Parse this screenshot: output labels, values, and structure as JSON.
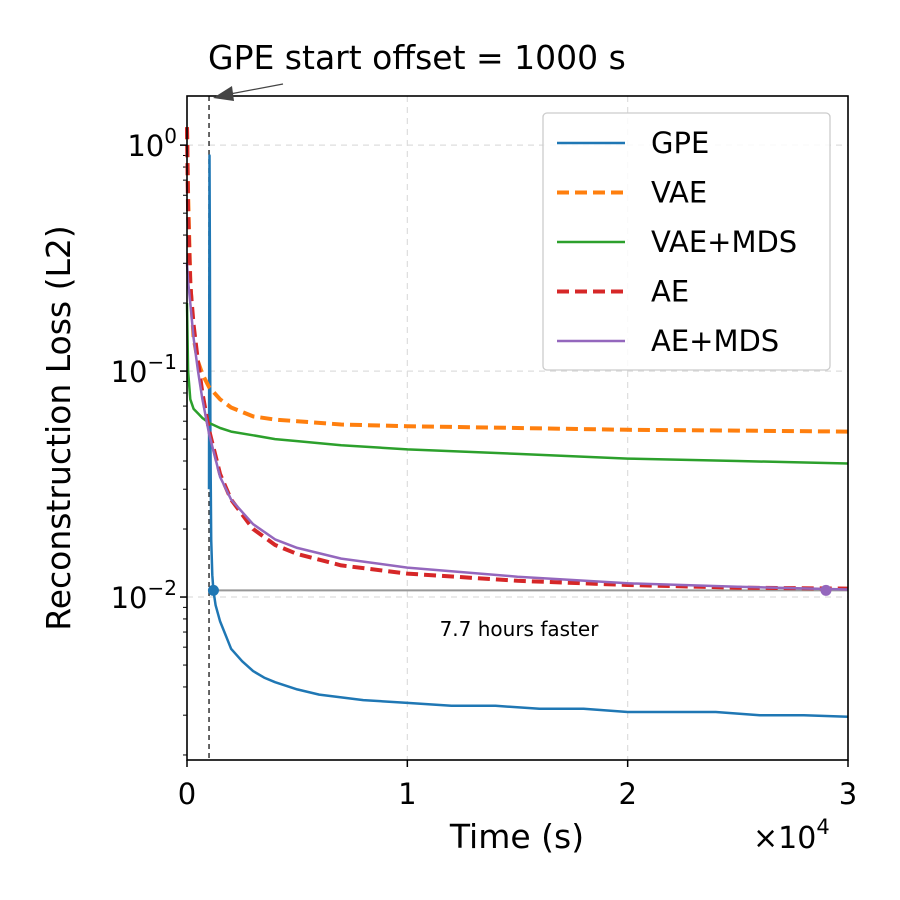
{
  "chart_data": {
    "type": "line",
    "title": "GPE start offset = 1000 s",
    "xlabel": "Time (s)",
    "ylabel": "Reconstruction Loss (L2)",
    "x_scale_label": "×10",
    "x_scale_exp": "4",
    "xlim": [
      0,
      30000
    ],
    "ylim": [
      0.0019,
      1.65
    ],
    "yscale": "log",
    "x_ticks": [
      0,
      10000,
      20000,
      30000
    ],
    "x_tick_labels": [
      "0",
      "1",
      "2",
      "3"
    ],
    "y_ticks": [
      {
        "value": 1,
        "base": "10",
        "exp": "0"
      },
      {
        "value": 0.1,
        "base": "10",
        "exp": "−1"
      },
      {
        "value": 0.01,
        "base": "10",
        "exp": "−2"
      }
    ],
    "grid": true,
    "legend_position": "top-right",
    "gpe_offset_s": 1000,
    "speedup_annotation": "7.7 hours faster",
    "speedup_marker_loss": 0.0107,
    "speedup_marker_times": [
      1200,
      29000
    ],
    "series": [
      {
        "name": "GPE",
        "color": "#1f77b4",
        "dash": "solid",
        "width": 2.5,
        "x": [
          1000,
          1020,
          1040,
          1060,
          1080,
          1100,
          1150,
          1200,
          1300,
          1500,
          1800,
          2000,
          2500,
          3000,
          3500,
          4000,
          5000,
          6000,
          8000,
          10000,
          12000,
          14000,
          16000,
          18000,
          20000,
          22000,
          24000,
          26000,
          28000,
          30000
        ],
        "y": [
          0.03,
          0.9,
          0.3,
          0.05,
          0.03,
          0.018,
          0.0125,
          0.0107,
          0.0092,
          0.0078,
          0.0066,
          0.0059,
          0.0052,
          0.0047,
          0.0044,
          0.0042,
          0.0039,
          0.0037,
          0.0035,
          0.0034,
          0.0033,
          0.0033,
          0.0032,
          0.0032,
          0.0031,
          0.0031,
          0.0031,
          0.003,
          0.003,
          0.00295
        ]
      },
      {
        "name": "VAE",
        "color": "#ff7f0e",
        "dash": "dashed",
        "width": 4,
        "x": [
          0,
          50,
          150,
          300,
          500,
          700,
          1000,
          1500,
          2000,
          3000,
          4000,
          5000,
          7000,
          10000,
          15000,
          20000,
          25000,
          30000
        ],
        "y": [
          1.2,
          0.6,
          0.25,
          0.14,
          0.11,
          0.097,
          0.085,
          0.075,
          0.069,
          0.063,
          0.061,
          0.06,
          0.058,
          0.057,
          0.056,
          0.055,
          0.0545,
          0.054
        ]
      },
      {
        "name": "VAE+MDS",
        "color": "#2ca02c",
        "dash": "solid",
        "width": 2.5,
        "x": [
          0,
          50,
          150,
          300,
          500,
          700,
          1000,
          1500,
          2000,
          3000,
          4000,
          5000,
          7000,
          10000,
          15000,
          20000,
          25000,
          30000
        ],
        "y": [
          0.2,
          0.1,
          0.075,
          0.068,
          0.065,
          0.062,
          0.059,
          0.056,
          0.054,
          0.052,
          0.05,
          0.049,
          0.047,
          0.045,
          0.043,
          0.041,
          0.04,
          0.039
        ]
      },
      {
        "name": "AE",
        "color": "#d62728",
        "dash": "dashed",
        "width": 4,
        "x": [
          0,
          50,
          150,
          300,
          500,
          700,
          1000,
          1500,
          2000,
          3000,
          4000,
          5000,
          7000,
          10000,
          15000,
          20000,
          25000,
          30000
        ],
        "y": [
          1.2,
          0.5,
          0.24,
          0.16,
          0.11,
          0.08,
          0.055,
          0.035,
          0.027,
          0.02,
          0.017,
          0.0155,
          0.0138,
          0.0127,
          0.0118,
          0.0113,
          0.011,
          0.0109
        ]
      },
      {
        "name": "AE+MDS",
        "color": "#9467bd",
        "dash": "solid",
        "width": 2.5,
        "x": [
          0,
          50,
          150,
          300,
          500,
          700,
          1000,
          1500,
          2000,
          3000,
          4000,
          5000,
          7000,
          10000,
          15000,
          20000,
          25000,
          30000
        ],
        "y": [
          0.3,
          0.25,
          0.2,
          0.14,
          0.1,
          0.075,
          0.053,
          0.034,
          0.027,
          0.021,
          0.018,
          0.0165,
          0.0148,
          0.0135,
          0.0123,
          0.0115,
          0.0111,
          0.0108
        ]
      }
    ]
  }
}
